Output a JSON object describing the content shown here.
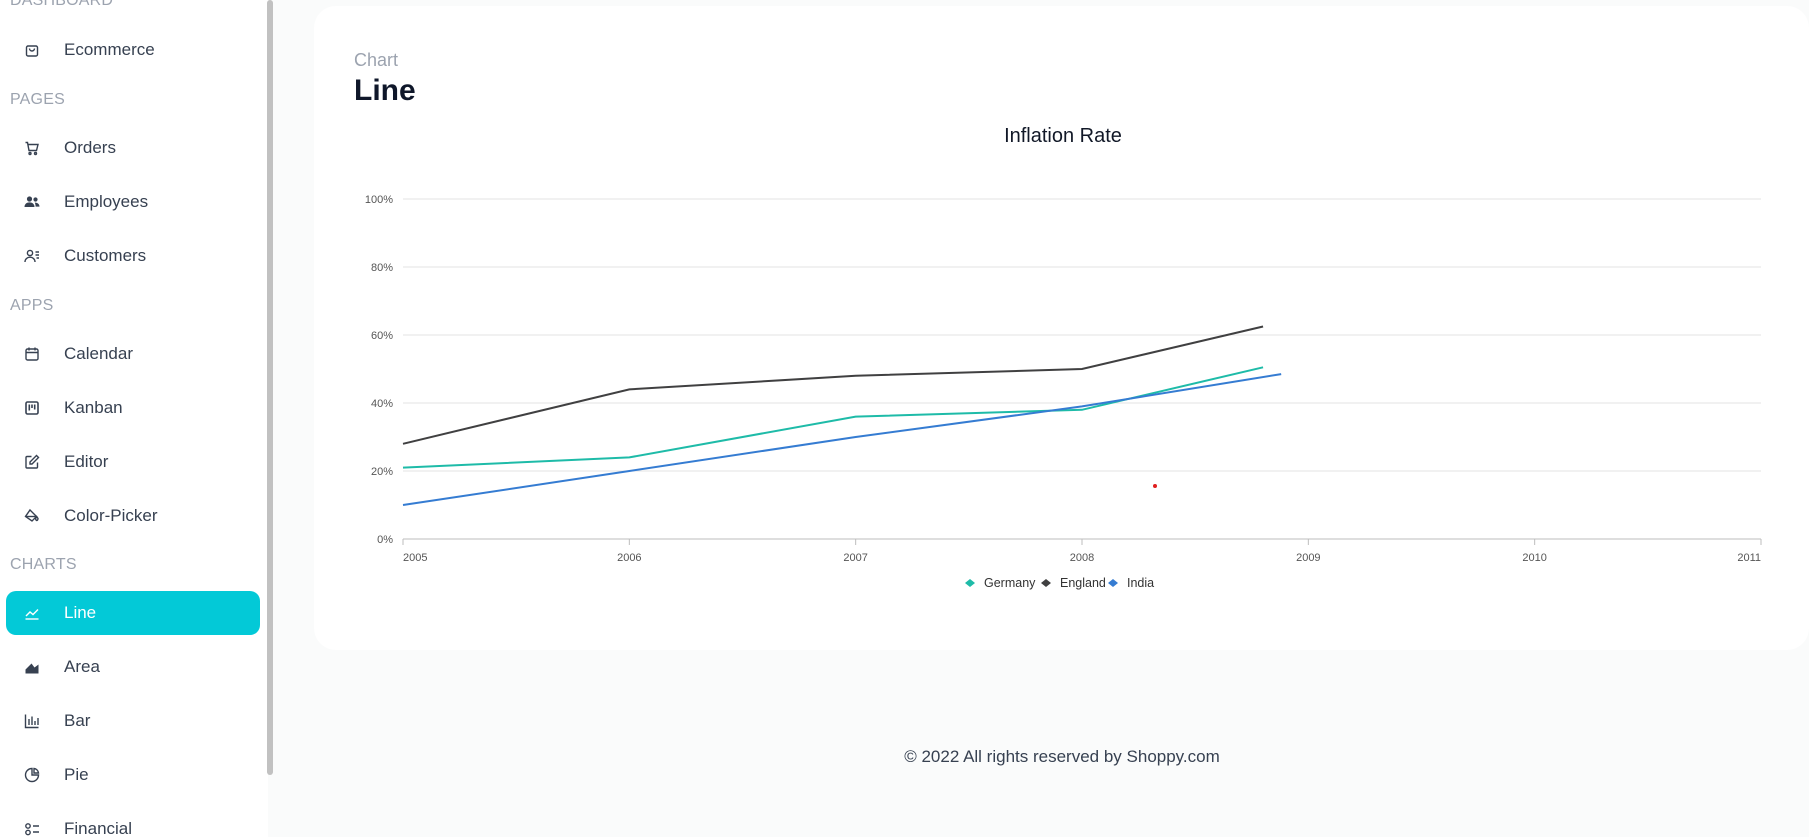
{
  "sidebar": {
    "sections": [
      {
        "label": "DASHBOARD"
      },
      {
        "label": "PAGES"
      },
      {
        "label": "APPS"
      },
      {
        "label": "CHARTS"
      }
    ],
    "items": [
      {
        "label": "Ecommerce",
        "icon": "shopping-bag-icon"
      },
      {
        "label": "Orders",
        "icon": "cart-icon"
      },
      {
        "label": "Employees",
        "icon": "users-icon"
      },
      {
        "label": "Customers",
        "icon": "contacts-icon"
      },
      {
        "label": "Calendar",
        "icon": "calendar-icon"
      },
      {
        "label": "Kanban",
        "icon": "kanban-icon"
      },
      {
        "label": "Editor",
        "icon": "edit-icon"
      },
      {
        "label": "Color-Picker",
        "icon": "paint-bucket-icon"
      },
      {
        "label": "Line",
        "icon": "line-chart-icon",
        "active": true
      },
      {
        "label": "Area",
        "icon": "area-chart-icon"
      },
      {
        "label": "Bar",
        "icon": "bar-chart-icon"
      },
      {
        "label": "Pie",
        "icon": "pie-chart-icon"
      },
      {
        "label": "Financial",
        "icon": "financial-icon"
      }
    ]
  },
  "header": {
    "category": "Chart",
    "title": "Line"
  },
  "colors": {
    "accent": "#03c9d7",
    "germany": "#1ebba8",
    "england": "#404041",
    "india": "#357cd2"
  },
  "chart_data": {
    "type": "line",
    "title": "Inflation Rate",
    "xlabel": "",
    "ylabel": "",
    "x_ticks": [
      "2005",
      "2006",
      "2007",
      "2008",
      "2009",
      "2010",
      "2011"
    ],
    "y_ticks": [
      "0%",
      "20%",
      "40%",
      "60%",
      "80%",
      "100%"
    ],
    "xlim": [
      2005,
      2011
    ],
    "ylim": [
      0,
      100
    ],
    "grid": true,
    "legend": "bottom-center",
    "series": [
      {
        "name": "Germany",
        "x": [
          2005,
          2006,
          2007,
          2008,
          2008.8
        ],
        "y": [
          21,
          24,
          36,
          38,
          50.5
        ]
      },
      {
        "name": "England",
        "x": [
          2005,
          2006,
          2007,
          2008,
          2008.8
        ],
        "y": [
          28,
          44,
          48,
          50,
          62.5
        ]
      },
      {
        "name": "India",
        "x": [
          2005,
          2006,
          2007,
          2008,
          2008.88
        ],
        "y": [
          10,
          20,
          30,
          39,
          48.5
        ]
      }
    ]
  },
  "footer": {
    "text": "© 2022 All rights reserved by Shoppy.com"
  }
}
